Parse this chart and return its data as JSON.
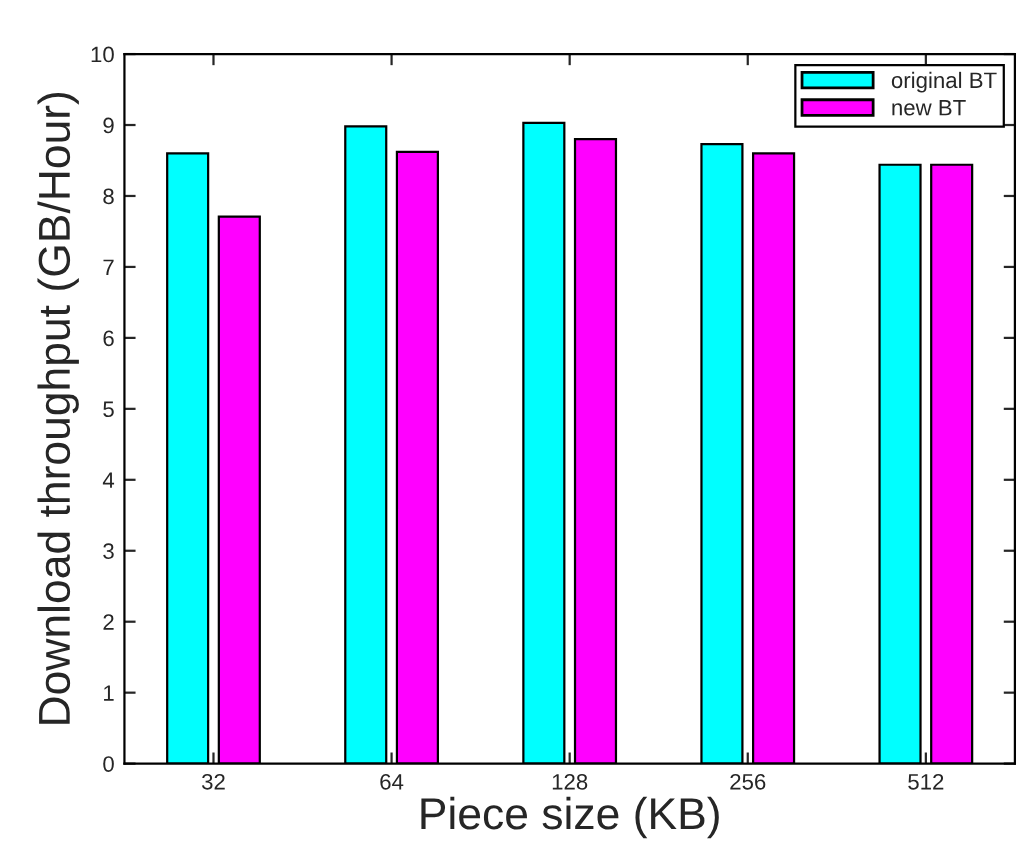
{
  "chart_data": {
    "type": "bar",
    "xlabel": "Piece size (KB)",
    "ylabel": "Download throughput (GB/Hour)",
    "categories": [
      "32",
      "64",
      "128",
      "256",
      "512"
    ],
    "series": [
      {
        "name": "original BT",
        "color": "#00ffff",
        "values": [
          8.6,
          8.98,
          9.03,
          8.73,
          8.44
        ]
      },
      {
        "name": "new BT",
        "color": "#ff00ff",
        "values": [
          7.71,
          8.62,
          8.8,
          8.6,
          8.44
        ]
      }
    ],
    "ylim": [
      0,
      10
    ],
    "yticks": [
      0,
      1,
      2,
      3,
      4,
      5,
      6,
      7,
      8,
      9,
      10
    ],
    "grid": false,
    "legend": "top right"
  }
}
